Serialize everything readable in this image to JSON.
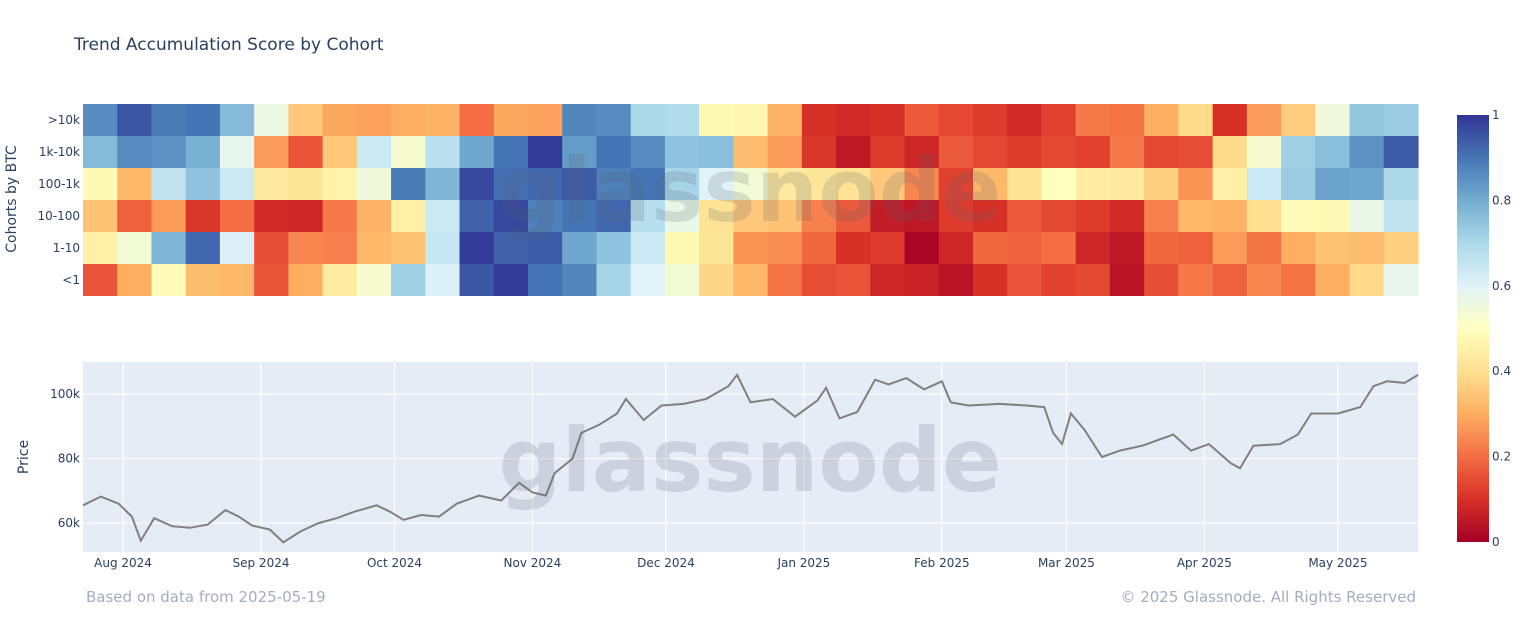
{
  "chart_data": {
    "type": "heatmap",
    "title": "Trend Accumulation Score by Cohort",
    "heatmap": {
      "ylabel": "Cohorts by BTC",
      "cohorts": [
        ">10k",
        "1k-10k",
        "100-1k",
        "10-100",
        "1-10",
        "<1"
      ],
      "x_start": "2024-07-23",
      "x_end": "2025-05-19",
      "colorscale_range": [
        0,
        1
      ],
      "colorbar_ticks": [
        "0",
        "0.2",
        "0.4",
        "0.6",
        "0.8",
        "1"
      ],
      "colors": [
        "#a50026",
        "#d73027",
        "#f46d43",
        "#fdae61",
        "#fee090",
        "#ffffbf",
        "#e0f3f8",
        "#abd9e9",
        "#74add1",
        "#4575b4",
        "#313695"
      ],
      "segments": [
        [
          [
            0.9,
            0.95,
            0.85,
            0.92,
            0.75,
            0.6,
            0.35,
            0.25,
            0.3,
            0.28,
            0.35,
            0.2,
            0.25,
            0.3,
            0.85,
            0.9,
            0.7,
            0.65,
            0.5,
            0.45,
            0.35,
            0.1,
            0.05,
            0.12,
            0.15,
            0.18,
            0.12,
            0.05,
            0.15,
            0.2,
            0.25,
            0.3,
            0.35,
            0.12,
            0.25,
            0.4,
            0.55,
            0.7,
            0.75
          ]
        ],
        [
          [
            0.75,
            0.9,
            0.85,
            0.75,
            0.6,
            0.25,
            0.2,
            0.35,
            0.6,
            0.55,
            0.65,
            0.85,
            0.9,
            0.95,
            0.85,
            0.88,
            0.9,
            0.75,
            0.72,
            0.35,
            0.25,
            0.15,
            0.05,
            0.08,
            0.1,
            0.15,
            0.18,
            0.12,
            0.1,
            0.15,
            0.2,
            0.18,
            0.15,
            0.35,
            0.55,
            0.7,
            0.8,
            0.85,
            0.9
          ]
        ],
        [
          [
            0.5,
            0.3,
            0.7,
            0.75,
            0.6,
            0.45,
            0.4,
            0.5,
            0.55,
            0.85,
            0.8,
            0.95,
            0.95,
            0.92,
            0.9,
            0.9,
            0.88,
            0.75,
            0.6,
            0.5,
            0.45,
            0.4,
            0.45,
            0.35,
            0.2,
            0.15,
            0.3,
            0.45,
            0.5,
            0.4,
            0.45,
            0.35,
            0.3,
            0.45,
            0.6,
            0.75,
            0.8,
            0.85,
            0.7
          ]
        ],
        [
          [
            0.3,
            0.2,
            0.25,
            0.15,
            0.2,
            0.05,
            0.1,
            0.2,
            0.35,
            0.45,
            0.6,
            0.95,
            0.95,
            0.92,
            0.9,
            0.88,
            0.7,
            0.55,
            0.45,
            0.35,
            0.3,
            0.25,
            0.15,
            0.1,
            0.05,
            0.08,
            0.12,
            0.15,
            0.18,
            0.12,
            0.05,
            0.25,
            0.3,
            0.35,
            0.4,
            0.45,
            0.5,
            0.55,
            0.7
          ]
        ],
        [
          [
            0.45,
            0.5,
            0.8,
            0.9,
            0.65,
            0.15,
            0.2,
            0.25,
            0.3,
            0.38,
            0.65,
            0.95,
            0.95,
            0.92,
            0.85,
            0.75,
            0.6,
            0.5,
            0.4,
            0.3,
            0.25,
            0.15,
            0.12,
            0.1,
            0.05,
            0.08,
            0.15,
            0.2,
            0.18,
            0.12,
            0.05,
            0.15,
            0.2,
            0.25,
            0.25,
            0.3,
            0.3,
            0.35,
            0.35
          ]
        ],
        [
          [
            0.2,
            0.3,
            0.45,
            0.35,
            0.3,
            0.2,
            0.3,
            0.4,
            0.55,
            0.7,
            0.65,
            0.95,
            0.95,
            0.92,
            0.85,
            0.75,
            0.6,
            0.5,
            0.4,
            0.3,
            0.25,
            0.15,
            0.12,
            0.1,
            0.05,
            0.08,
            0.1,
            0.12,
            0.15,
            0.12,
            0.08,
            0.15,
            0.18,
            0.2,
            0.22,
            0.25,
            0.3,
            0.35,
            0.6
          ]
        ]
      ]
    },
    "price": {
      "ylabel": "Price",
      "yticks": [
        "60k",
        "80k",
        "100k"
      ],
      "ylim": [
        51000,
        110000
      ],
      "xticks": [
        {
          "label": "Aug 2024",
          "date": "2024-08-01"
        },
        {
          "label": "Sep 2024",
          "date": "2024-09-01"
        },
        {
          "label": "Oct 2024",
          "date": "2024-10-01"
        },
        {
          "label": "Nov 2024",
          "date": "2024-11-01"
        },
        {
          "label": "Dec 2024",
          "date": "2024-12-01"
        },
        {
          "label": "Jan 2025",
          "date": "2025-01-01"
        },
        {
          "label": "Feb 2025",
          "date": "2025-02-01"
        },
        {
          "label": "Mar 2025",
          "date": "2025-03-01"
        },
        {
          "label": "Apr 2025",
          "date": "2025-04-01"
        },
        {
          "label": "May 2025",
          "date": "2025-05-01"
        }
      ],
      "line_color": "#808080",
      "points": [
        [
          "2024-07-23",
          65500
        ],
        [
          "2024-07-27",
          68200
        ],
        [
          "2024-07-31",
          66000
        ],
        [
          "2024-08-03",
          62000
        ],
        [
          "2024-08-05",
          54500
        ],
        [
          "2024-08-08",
          61500
        ],
        [
          "2024-08-12",
          59000
        ],
        [
          "2024-08-16",
          58500
        ],
        [
          "2024-08-20",
          59500
        ],
        [
          "2024-08-24",
          64000
        ],
        [
          "2024-08-27",
          62000
        ],
        [
          "2024-08-30",
          59200
        ],
        [
          "2024-09-03",
          58000
        ],
        [
          "2024-09-06",
          54000
        ],
        [
          "2024-09-10",
          57500
        ],
        [
          "2024-09-14",
          60000
        ],
        [
          "2024-09-18",
          61500
        ],
        [
          "2024-09-22",
          63500
        ],
        [
          "2024-09-27",
          65500
        ],
        [
          "2024-09-30",
          63500
        ],
        [
          "2024-10-03",
          61000
        ],
        [
          "2024-10-07",
          62500
        ],
        [
          "2024-10-11",
          62000
        ],
        [
          "2024-10-15",
          66000
        ],
        [
          "2024-10-20",
          68500
        ],
        [
          "2024-10-25",
          67000
        ],
        [
          "2024-10-29",
          72500
        ],
        [
          "2024-11-01",
          69500
        ],
        [
          "2024-11-04",
          68500
        ],
        [
          "2024-11-06",
          75500
        ],
        [
          "2024-11-10",
          80000
        ],
        [
          "2024-11-12",
          88000
        ],
        [
          "2024-11-16",
          90500
        ],
        [
          "2024-11-20",
          94000
        ],
        [
          "2024-11-22",
          98500
        ],
        [
          "2024-11-26",
          92000
        ],
        [
          "2024-11-30",
          96500
        ],
        [
          "2024-12-05",
          97000
        ],
        [
          "2024-12-10",
          98500
        ],
        [
          "2024-12-15",
          102500
        ],
        [
          "2024-12-17",
          106000
        ],
        [
          "2024-12-20",
          97500
        ],
        [
          "2024-12-25",
          98500
        ],
        [
          "2024-12-30",
          93000
        ],
        [
          "2025-01-04",
          98000
        ],
        [
          "2025-01-06",
          102000
        ],
        [
          "2025-01-09",
          92500
        ],
        [
          "2025-01-13",
          94500
        ],
        [
          "2025-01-17",
          104500
        ],
        [
          "2025-01-20",
          103000
        ],
        [
          "2025-01-24",
          105000
        ],
        [
          "2025-01-28",
          101500
        ],
        [
          "2025-02-01",
          104000
        ],
        [
          "2025-02-03",
          97500
        ],
        [
          "2025-02-07",
          96500
        ],
        [
          "2025-02-14",
          97000
        ],
        [
          "2025-02-20",
          96500
        ],
        [
          "2025-02-24",
          96000
        ],
        [
          "2025-02-26",
          88000
        ],
        [
          "2025-02-28",
          84500
        ],
        [
          "2025-03-02",
          94000
        ],
        [
          "2025-03-05",
          89000
        ],
        [
          "2025-03-09",
          80500
        ],
        [
          "2025-03-13",
          82500
        ],
        [
          "2025-03-18",
          84000
        ],
        [
          "2025-03-25",
          87500
        ],
        [
          "2025-03-29",
          82500
        ],
        [
          "2025-04-02",
          84500
        ],
        [
          "2025-04-07",
          78500
        ],
        [
          "2025-04-09",
          77000
        ],
        [
          "2025-04-12",
          84000
        ],
        [
          "2025-04-18",
          84500
        ],
        [
          "2025-04-22",
          87500
        ],
        [
          "2025-04-25",
          94000
        ],
        [
          "2025-05-01",
          94000
        ],
        [
          "2025-05-06",
          96000
        ],
        [
          "2025-05-09",
          102500
        ],
        [
          "2025-05-12",
          104000
        ],
        [
          "2025-05-16",
          103500
        ],
        [
          "2025-05-19",
          106000
        ]
      ]
    }
  },
  "watermark": "glassnode",
  "footer": {
    "left": "Based on data from 2025-05-19",
    "right": "© 2025 Glassnode. All Rights Reserved"
  }
}
